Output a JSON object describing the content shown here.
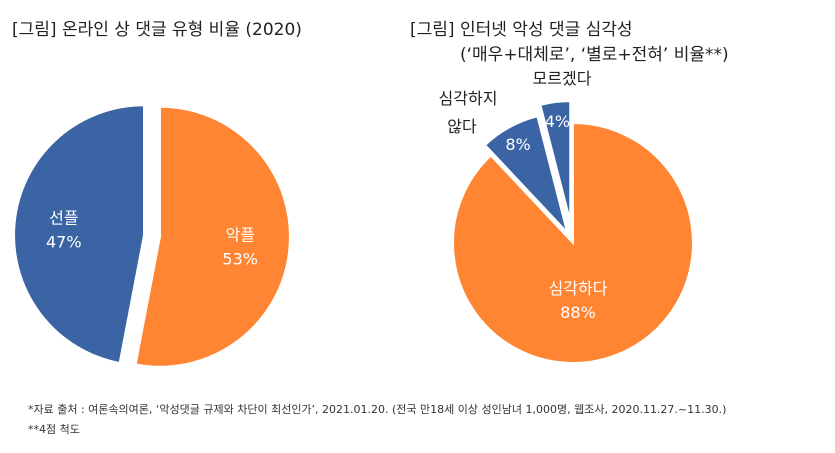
{
  "chart_data": [
    {
      "type": "pie",
      "title": "[그림] 온라인 상 댓글 유형 비율 (2020)",
      "slices": [
        {
          "label": "악플",
          "value": 53,
          "display": "53%",
          "color": "#FF8533",
          "explode": true
        },
        {
          "label": "선플",
          "value": 47,
          "display": "47%",
          "color": "#3A64A4",
          "explode": true
        }
      ]
    },
    {
      "type": "pie",
      "title": "[그림] 인터넷 악성 댓글 심각성",
      "subtitle": "(‘매우+대체로’, ‘별로+전혀’ 비율**)",
      "slices": [
        {
          "label": "심각하다",
          "value": 88,
          "display": "88%",
          "color": "#FF8533",
          "explode": false
        },
        {
          "label": "심각하지 않다",
          "value": 8,
          "display": "8%",
          "color": "#3A64A4",
          "explode": true,
          "label_lines": [
            "심각하지",
            "않다"
          ]
        },
        {
          "label": "모르겠다",
          "value": 4,
          "display": "4%",
          "color": "#3A64A4",
          "explode": true
        }
      ]
    }
  ],
  "notes": {
    "source": "*자료 출처 : 여론속의여론, ‘악성댓글 규제와 차단이 최선인가’, 2021.01.20. (전국 만18세 이상 성인남녀 1,000명, 웹조사, 2020.11.27.~11.30.)",
    "scale": "**4점 척도"
  }
}
